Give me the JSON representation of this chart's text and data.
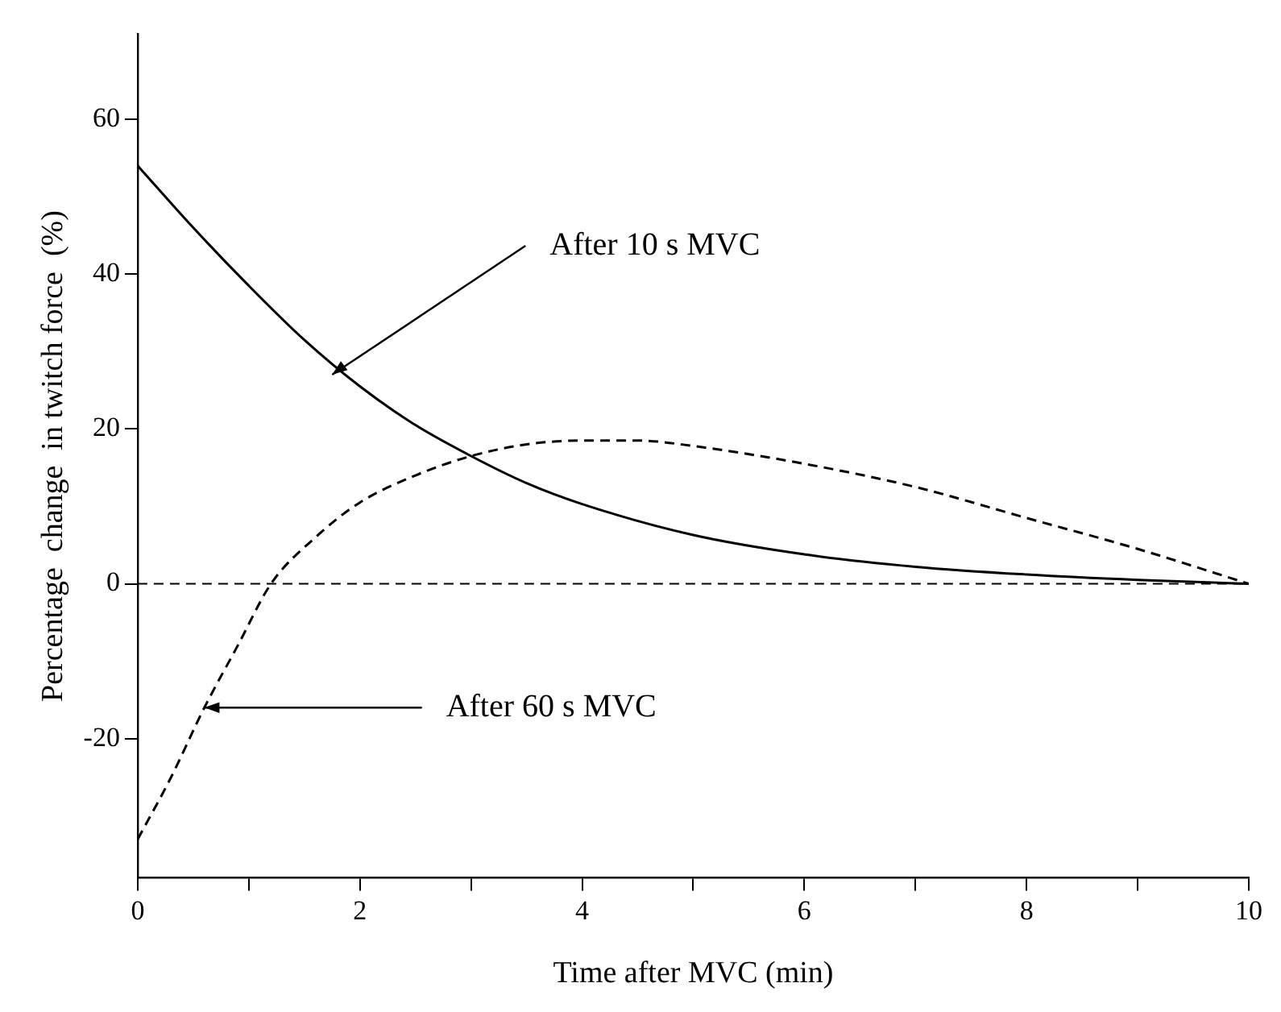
{
  "chart_data": {
    "type": "line",
    "xlabel": "Time after MVC (min)",
    "ylabel": "Percentage  change  in twitch force  (%)",
    "xlim": [
      0,
      10
    ],
    "xticks": [
      0,
      {
        "value": 1,
        "label": null
      },
      2,
      {
        "value": 3,
        "label": null
      },
      4,
      {
        "value": 5,
        "label": null
      },
      6,
      {
        "value": 7,
        "label": null
      },
      8,
      {
        "value": 9,
        "label": null
      },
      10
    ],
    "ylim": [
      -38,
      71
    ],
    "yticks": [
      -20,
      0,
      20,
      40,
      60
    ],
    "series": [
      {
        "color": "#000000",
        "line_style": "solid",
        "x": [
          0,
          0.5,
          1,
          1.5,
          2,
          2.5,
          3,
          3.5,
          4,
          5,
          6,
          7,
          8,
          9,
          10
        ],
        "values": [
          54,
          46,
          38.5,
          31.5,
          25.5,
          20.5,
          16.5,
          13,
          10.3,
          6.3,
          3.8,
          2.2,
          1.2,
          0.5,
          0
        ]
      },
      {
        "color": "#000000",
        "line_style": "dashed",
        "x": [
          0,
          0.3,
          0.6,
          0.9,
          1.2,
          1.6,
          2,
          2.5,
          3,
          3.5,
          4,
          4.5,
          5,
          6,
          7,
          8,
          9,
          10
        ],
        "values": [
          -33,
          -25,
          -16,
          -8,
          0,
          6,
          10.5,
          14,
          16.5,
          18,
          18.5,
          18.5,
          17.8,
          15.5,
          12.5,
          8.5,
          4.5,
          0
        ]
      }
    ],
    "ref_lines": [
      {
        "axis": "y",
        "value": 0,
        "line_style": "dashed",
        "color": "#000000"
      }
    ],
    "annotations": [
      {
        "text": "After 10 s MVC",
        "x": 1.75,
        "y": 27
      },
      {
        "text": "After 60 s MVC",
        "x": 0.6,
        "y": -16
      }
    ],
    "grid": false,
    "legend": false,
    "marker": "none"
  }
}
